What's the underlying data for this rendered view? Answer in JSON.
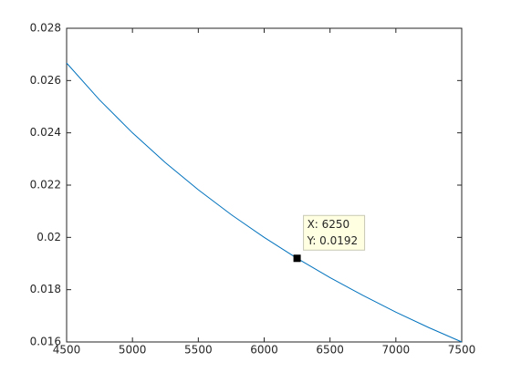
{
  "chart_data": {
    "type": "line",
    "x": [
      4500,
      4750,
      5000,
      5250,
      5500,
      5750,
      6000,
      6250,
      6500,
      6750,
      7000,
      7250,
      7500
    ],
    "series": [
      {
        "color": "#0072bd",
        "values": [
          0.02667,
          0.02526,
          0.024,
          0.02286,
          0.02182,
          0.02087,
          0.02,
          0.0192,
          0.01846,
          0.01778,
          0.01714,
          0.01655,
          0.016
        ]
      }
    ],
    "xlim": [
      4500,
      7500
    ],
    "xticks": [
      4500,
      5000,
      5500,
      6000,
      6500,
      7000,
      7500
    ],
    "ylim": [
      0.016,
      0.028
    ],
    "yticks": [
      0.016,
      0.018,
      0.02,
      0.022,
      0.024,
      0.026,
      0.028
    ],
    "datatip": {
      "x": 6250,
      "y": 0.0192,
      "labels": [
        "X: 6250",
        "Y: 0.0192"
      ]
    }
  }
}
